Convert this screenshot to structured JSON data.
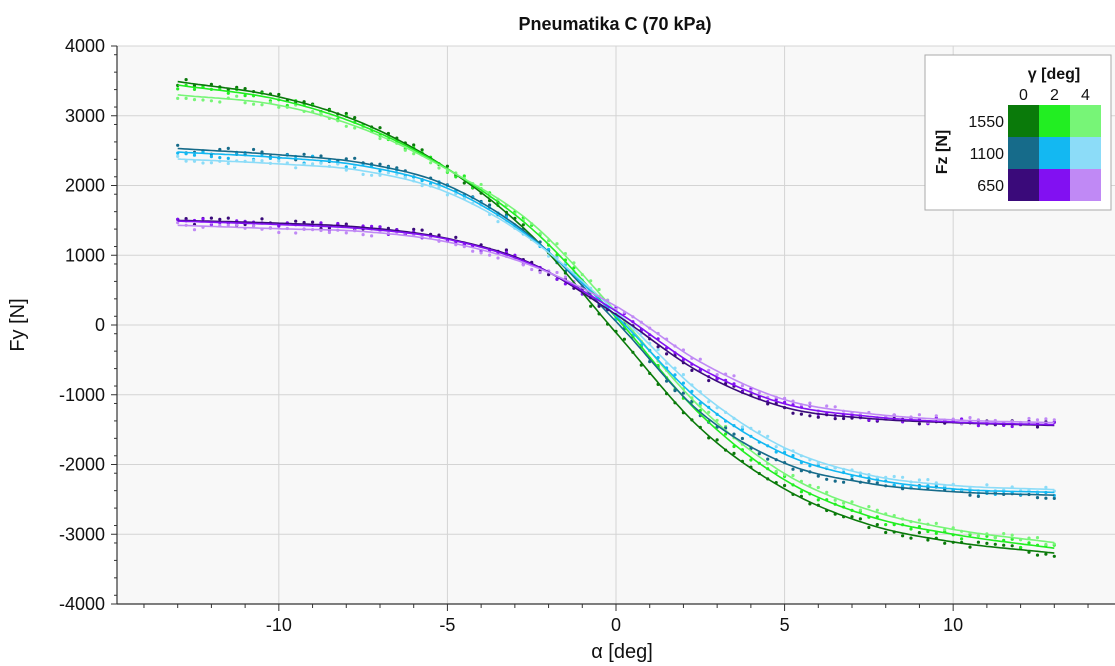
{
  "chart_data": {
    "type": "line",
    "title": "Pneumatika C (70 kPa)",
    "xlabel": "α [deg]",
    "ylabel": "Fy [N]",
    "xlim": [
      -14.8,
      14.8
    ],
    "ylim": [
      -4000,
      4000
    ],
    "xticks": [
      -10,
      -5,
      0,
      5,
      10
    ],
    "yticks": [
      4000,
      3000,
      2000,
      1000,
      0,
      -1000,
      -2000,
      -3000,
      -4000
    ],
    "grid": true,
    "legend": {
      "placement": "top-right",
      "column_title": "γ [deg]",
      "row_title": "Fz [N]",
      "columns": [
        "0",
        "2",
        "4"
      ],
      "rows": [
        "1550",
        "1100",
        "650"
      ],
      "colors": [
        [
          "#0a7a0a",
          "#22ee22",
          "#77f577"
        ],
        [
          "#166b8a",
          "#13b8f2",
          "#8cdcf8"
        ],
        [
          "#3a0a7a",
          "#8210f2",
          "#c089f5"
        ]
      ]
    },
    "series": [
      {
        "x": [
          -13,
          -10,
          -7.5,
          -5,
          -2.5,
          0,
          2.5,
          5,
          7.5,
          10,
          13
        ],
        "values": [
          3490,
          3270,
          2890,
          2240,
          1280,
          -110,
          -1480,
          -2350,
          -2860,
          -3110,
          -3270
        ],
        "color": "#0a7a0a"
      },
      {
        "x": [
          -13,
          -10,
          -7.5,
          -5,
          -2.5,
          0,
          2.5,
          5,
          7.5,
          10,
          13
        ],
        "values": [
          3440,
          3230,
          2850,
          2240,
          1380,
          110,
          -1280,
          -2220,
          -2740,
          -3000,
          -3200
        ],
        "color": "#22ee22"
      },
      {
        "x": [
          -13,
          -10,
          -7.5,
          -5,
          -2.5,
          0,
          2.5,
          5,
          7.5,
          10,
          13
        ],
        "values": [
          3300,
          3150,
          2810,
          2230,
          1460,
          190,
          -1180,
          -2130,
          -2650,
          -2930,
          -3120
        ],
        "color": "#77f577"
      },
      {
        "x": [
          -13,
          -10,
          -7.5,
          -5,
          -2.5,
          0,
          2.5,
          5,
          7.5,
          10,
          13
        ],
        "values": [
          2530,
          2440,
          2320,
          2000,
          1260,
          50,
          -1250,
          -1980,
          -2270,
          -2390,
          -2440
        ],
        "color": "#166b8a"
      },
      {
        "x": [
          -13,
          -10,
          -7.5,
          -5,
          -2.5,
          0,
          2.5,
          5,
          7.5,
          10,
          13
        ],
        "values": [
          2480,
          2400,
          2280,
          1960,
          1240,
          130,
          -1090,
          -1850,
          -2200,
          -2350,
          -2400
        ],
        "color": "#13b8f2"
      },
      {
        "x": [
          -13,
          -10,
          -7.5,
          -5,
          -2.5,
          0,
          2.5,
          5,
          7.5,
          10,
          13
        ],
        "values": [
          2380,
          2310,
          2210,
          1900,
          1220,
          190,
          -970,
          -1760,
          -2150,
          -2300,
          -2360
        ],
        "color": "#8cdcf8"
      },
      {
        "x": [
          -13,
          -10,
          -7.5,
          -5,
          -2.5,
          0,
          2.5,
          5,
          7.5,
          10,
          13
        ],
        "values": [
          1500,
          1460,
          1400,
          1240,
          880,
          150,
          -680,
          -1180,
          -1340,
          -1400,
          -1440
        ],
        "color": "#3a0a7a"
      },
      {
        "x": [
          -13,
          -10,
          -7.5,
          -5,
          -2.5,
          0,
          2.5,
          5,
          7.5,
          10,
          13
        ],
        "values": [
          1490,
          1440,
          1380,
          1230,
          870,
          200,
          -620,
          -1130,
          -1310,
          -1390,
          -1430
        ],
        "color": "#8210f2"
      },
      {
        "x": [
          -13,
          -10,
          -7.5,
          -5,
          -2.5,
          0,
          2.5,
          5,
          7.5,
          10,
          13
        ],
        "values": [
          1430,
          1380,
          1340,
          1190,
          850,
          270,
          -530,
          -1070,
          -1270,
          -1360,
          -1400
        ],
        "color": "#c089f5"
      }
    ]
  }
}
